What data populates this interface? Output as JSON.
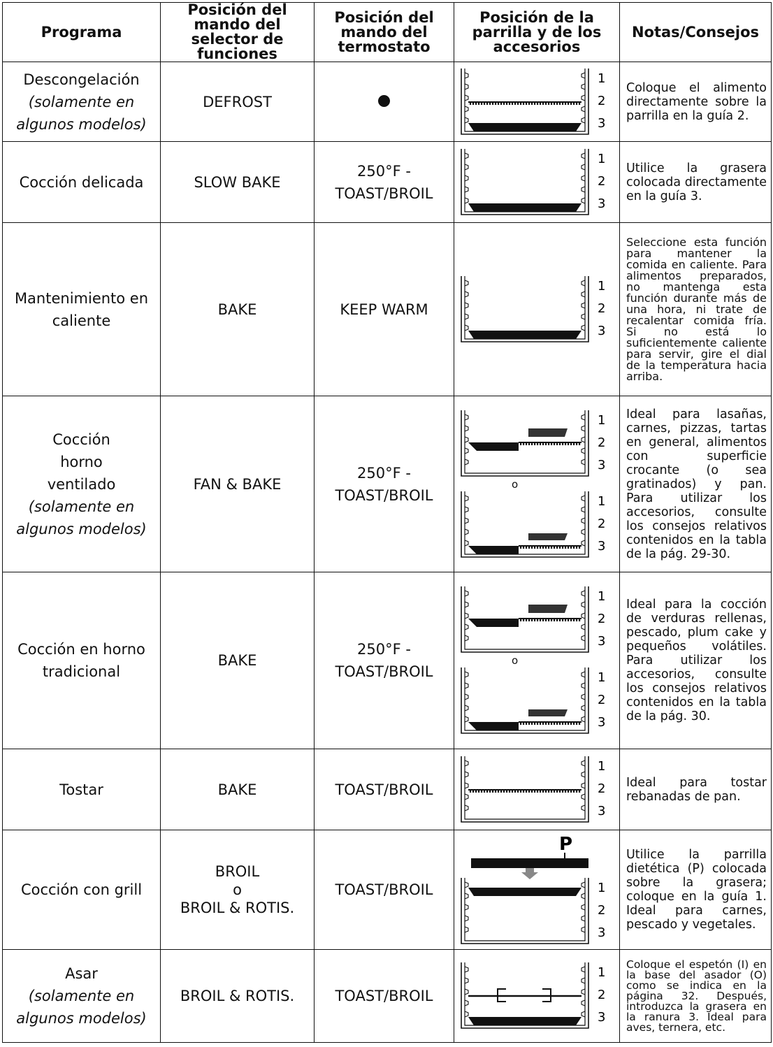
{
  "headers": {
    "program": "Programa",
    "selector": "Posición del mando del selector de funciones",
    "thermostat": "Posición del mando del termostato",
    "rack": "Posición de la parrilla y de los accesorios",
    "notes": "Notas/Consejos"
  },
  "rows": [
    {
      "program": "Descongelación",
      "program_note": "(solamente en algunos modelos)",
      "selector": "DEFROST",
      "thermostat": "",
      "thermostat_icon": "filled-dot-icon",
      "rack_levels": [
        "1",
        "2",
        "3"
      ],
      "notes": "Coloque el alimento directamente sobre la parrilla en la guía 2."
    },
    {
      "program": "Cocción delicada",
      "program_note": "",
      "selector": "SLOW BAKE",
      "thermostat": "250°F - TOAST/BROIL",
      "rack_levels": [
        "1",
        "2",
        "3"
      ],
      "notes": "Utilice la grasera colocada directamente en la guía 3."
    },
    {
      "program": "Mantenimiento en caliente",
      "program_note": "",
      "selector": "BAKE",
      "thermostat": "KEEP WARM",
      "rack_levels": [
        "1",
        "2",
        "3"
      ],
      "notes": "Seleccione esta función para mantener la comida en caliente. Para alimentos preparados, no mantenga esta función durante más de una hora, ni trate de recalentar comida fría. Si no está lo suficientemente caliente para servir, gire el dial de la temperatura hacia arriba."
    },
    {
      "program": "Cocción horno ventilado",
      "program_note": "(solamente en algunos modelos)",
      "selector": "FAN & BAKE",
      "thermostat": "250°F - TOAST/BROIL",
      "rack_levels": [
        "1",
        "2",
        "3"
      ],
      "diagram_separator": "o",
      "notes": "Ideal para lasañas, carnes, pizzas, tartas en general, alimentos con superficie crocante (o sea gratinados) y pan. Para utilizar los accesorios, consulte los consejos relativos contenidos en la tabla de la pág. 29-30."
    },
    {
      "program": "Cocción en horno tradicional",
      "program_note": "",
      "selector": "BAKE",
      "thermostat": "250°F - TOAST/BROIL",
      "rack_levels": [
        "1",
        "2",
        "3"
      ],
      "diagram_separator": "o",
      "notes": "Ideal para la cocción de verduras rellenas, pescado, plum cake y pequeños volátiles. Para utilizar los accesorios, consulte los consejos relativos contenidos en la tabla de la pág. 30."
    },
    {
      "program": "Tostar",
      "program_note": "",
      "selector": "BAKE",
      "thermostat": "TOAST/BROIL",
      "rack_levels": [
        "1",
        "2",
        "3"
      ],
      "notes": "Ideal para tostar rebanadas de pan."
    },
    {
      "program": "Cocción con grill",
      "program_note": "",
      "selector": "BROIL",
      "selector_or": "o",
      "selector_alt": "BROIL & ROTIS.",
      "thermostat": "TOAST/BROIL",
      "rack_levels": [
        "1",
        "2",
        "3"
      ],
      "diagram_label": "P",
      "notes": "Utilice la parrilla dietética (P) colocada sobre la grasera; coloque en la guía 1. Ideal para carnes, pescado y vegetales."
    },
    {
      "program": "Asar",
      "program_note": "(solamente en algunos modelos)",
      "selector": "BROIL & ROTIS.",
      "thermostat": "TOAST/BROIL",
      "rack_levels": [
        "1",
        "2",
        "3"
      ],
      "notes": "Coloque el espetón (I) en la base del asador (O) como se indica en la página 32. Después, introduzca la grasera en la ranura 3. Ideal para aves, ternera, etc."
    }
  ]
}
